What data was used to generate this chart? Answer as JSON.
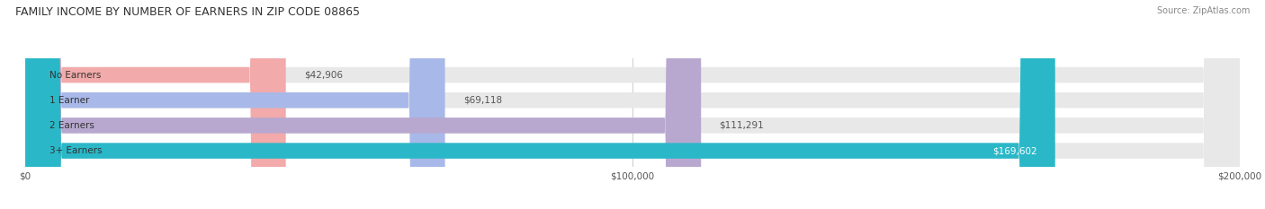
{
  "title": "FAMILY INCOME BY NUMBER OF EARNERS IN ZIP CODE 08865",
  "source": "Source: ZipAtlas.com",
  "categories": [
    "No Earners",
    "1 Earner",
    "2 Earners",
    "3+ Earners"
  ],
  "values": [
    42906,
    69118,
    111291,
    169602
  ],
  "bar_colors": [
    "#f2aaaa",
    "#a8b8e8",
    "#b8a8d0",
    "#2ab8c8"
  ],
  "label_colors": [
    "#666666",
    "#666666",
    "#666666",
    "#ffffff"
  ],
  "xlim": [
    0,
    200000
  ],
  "tick_values": [
    0,
    100000,
    200000
  ],
  "tick_labels": [
    "$0",
    "$100,000",
    "$200,000"
  ],
  "bar_height": 0.62,
  "figsize": [
    14.06,
    2.33
  ],
  "dpi": 100
}
